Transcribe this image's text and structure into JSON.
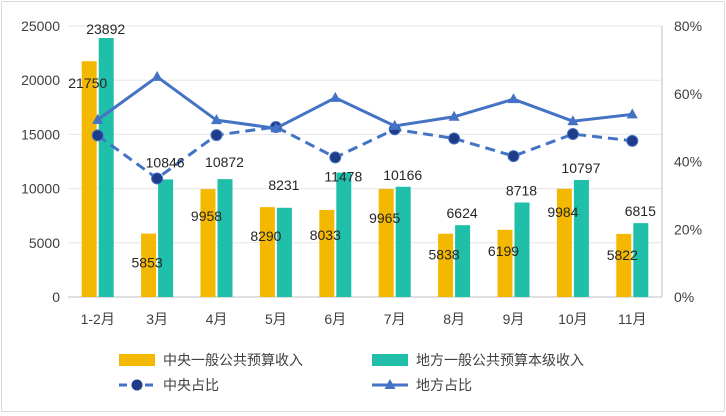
{
  "chart_data": {
    "type": "bar",
    "categories": [
      "1-2月",
      "3月",
      "4月",
      "5月",
      "6月",
      "7月",
      "8月",
      "9月",
      "10月",
      "11月"
    ],
    "series": [
      {
        "name": "中央一般公共预算收入",
        "kind": "bar",
        "axis": "left",
        "color": "#f5b800",
        "values": [
          21750,
          5853,
          9958,
          8290,
          8033,
          9965,
          5838,
          6199,
          9984,
          5822
        ]
      },
      {
        "name": "地方一般公共预算本级收入",
        "kind": "bar",
        "axis": "left",
        "color": "#1fbfaa",
        "values": [
          23892,
          10846,
          10872,
          8231,
          11478,
          10166,
          6624,
          8718,
          10797,
          6815
        ]
      },
      {
        "name": "中央占比",
        "kind": "line",
        "style": "dashed",
        "marker": "circle",
        "axis": "right",
        "color": "#4472c4",
        "values": [
          47.7,
          35.0,
          47.8,
          50.2,
          41.2,
          49.5,
          46.8,
          41.6,
          48.1,
          46.1
        ]
      },
      {
        "name": "地方占比",
        "kind": "line",
        "style": "solid",
        "marker": "triangle",
        "axis": "right",
        "color": "#4472c4",
        "values": [
          52.3,
          65.0,
          52.2,
          49.8,
          58.8,
          50.5,
          53.2,
          58.4,
          51.9,
          53.9
        ]
      }
    ],
    "y_left": {
      "min": 0,
      "max": 25000,
      "ticks": [
        "0",
        "5000",
        "10000",
        "15000",
        "20000",
        "25000"
      ]
    },
    "y_right": {
      "min": 0,
      "max": 80,
      "ticks": [
        "0%",
        "20%",
        "40%",
        "60%",
        "80%"
      ]
    },
    "grid": true,
    "legend_position": "bottom"
  }
}
